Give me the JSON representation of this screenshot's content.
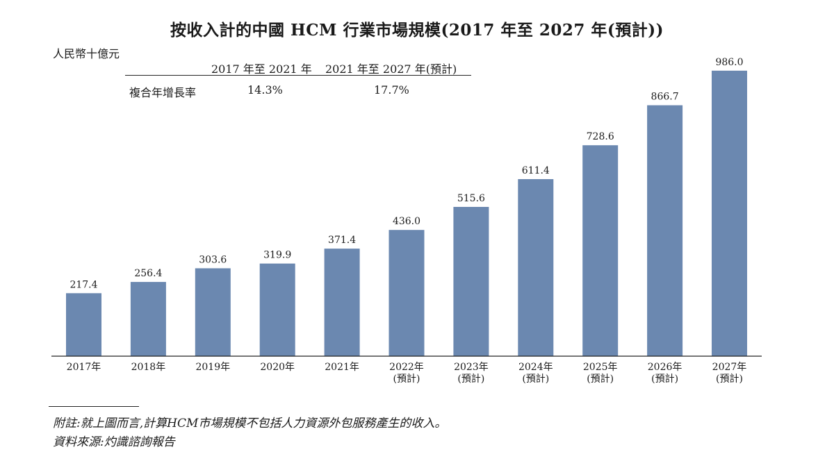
{
  "chart_data": {
    "type": "bar",
    "title": "按收入計的中國 HCM 行業市場規模(2017 年至 2027 年(預計))",
    "ylabel": "人民幣十億元",
    "xlabel": "",
    "categories": [
      [
        "2017年",
        ""
      ],
      [
        "2018年",
        ""
      ],
      [
        "2019年",
        ""
      ],
      [
        "2020年",
        ""
      ],
      [
        "2021年",
        ""
      ],
      [
        "2022年",
        "(預計)"
      ],
      [
        "2023年",
        "(預計)"
      ],
      [
        "2024年",
        "(預計)"
      ],
      [
        "2025年",
        "(預計)"
      ],
      [
        "2026年",
        "(預計)"
      ],
      [
        "2027年",
        "(預計)"
      ]
    ],
    "values": [
      217.4,
      256.4,
      303.6,
      319.9,
      371.4,
      436.0,
      515.6,
      611.4,
      728.6,
      866.7,
      986.0
    ],
    "value_labels": [
      "217.4",
      "256.4",
      "303.6",
      "319.9",
      "371.4",
      "436.0",
      "515.6",
      "611.4",
      "728.6",
      "866.7",
      "986.0"
    ],
    "ylim": [
      0,
      1000
    ],
    "bar_color": "#6b88b0",
    "grid": false,
    "cagr_table": {
      "headers": [
        "2017 年至 2021 年",
        "2021 年至 2027 年(預計)"
      ],
      "row_label": "複合年增長率",
      "values": [
        "14.3%",
        "17.7%"
      ]
    }
  },
  "notes": {
    "note": "附註:就上圖而言,計算HCM市場規模不包括人力資源外包服務產生的收入。",
    "source": "資料來源:灼識諮詢報告"
  }
}
